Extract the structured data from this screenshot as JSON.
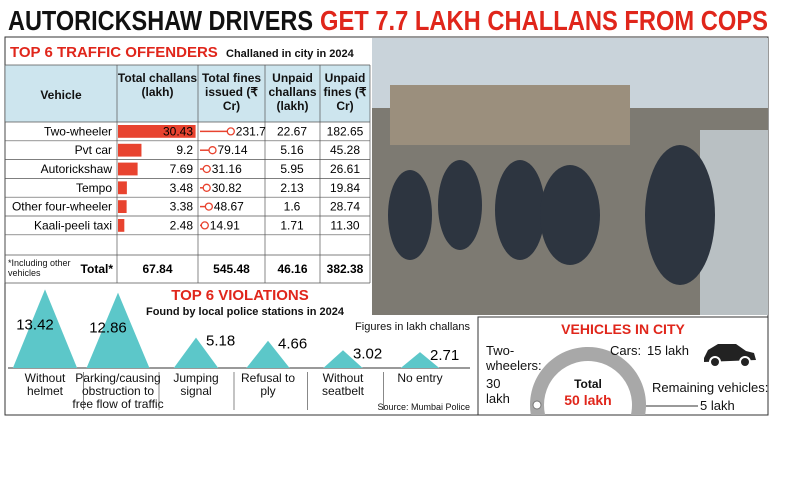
{
  "headline": {
    "part1": "AUTORICKSHAW DRIVERS",
    "part2": "GET 7.7 LAKH CHALLANS FROM COPS"
  },
  "table": {
    "title": "TOP 6 TRAFFIC OFFENDERS",
    "subtitle": "Challaned in city in 2024",
    "columns": [
      "Vehicle",
      "Total challans (lakh)",
      "Total fines issued (₹ Cr)",
      "Unpaid challans (lakh)",
      "Unpaid fines (₹ Cr)"
    ],
    "rows": [
      [
        "Two-wheeler",
        30.43,
        231.7,
        22.67,
        182.65
      ],
      [
        "Pvt car",
        9.2,
        79.14,
        5.16,
        45.28
      ],
      [
        "Autorickshaw",
        7.69,
        31.16,
        5.95,
        26.61
      ],
      [
        "Tempo",
        3.48,
        30.82,
        2.13,
        19.84
      ],
      [
        "Other four-wheeler",
        3.38,
        48.67,
        1.6,
        28.74
      ],
      [
        "Kaali-peeli taxi",
        2.48,
        14.91,
        1.71,
        "11.30"
      ]
    ],
    "footnote": "*Including other vehicles",
    "total_label": "Total*",
    "totals": [
      67.84,
      545.48,
      46.16,
      382.38
    ],
    "bar_color": "#e8432f"
  },
  "violations": {
    "type": "bar",
    "title": "TOP 6 VIOLATIONS",
    "subtitle": "Found by local police stations in 2024",
    "note": "Figures in lakh challans",
    "source": "Source: Mumbai Police",
    "categories": [
      "Without helmet",
      "Parking/causing obstruction to free flow of traffic",
      "Jumping signal",
      "Refusal to ply",
      "Without seatbelt",
      "No entry"
    ],
    "values": [
      13.42,
      12.86,
      5.18,
      4.66,
      3.02,
      2.71
    ],
    "color": "#5cc7c9",
    "ylim": [
      0,
      14
    ]
  },
  "vehicles": {
    "type": "pie",
    "title": "VEHICLES IN CITY",
    "total_label": "Total",
    "total": "50 lakh",
    "categories": [
      "Two-wheelers:",
      "Cars:",
      "Remaining vehicles:"
    ],
    "values": [
      30,
      15,
      5
    ],
    "value_labels": [
      "30 lakh",
      "15 lakh",
      "5 lakh"
    ],
    "color": "#a8a8a8"
  }
}
